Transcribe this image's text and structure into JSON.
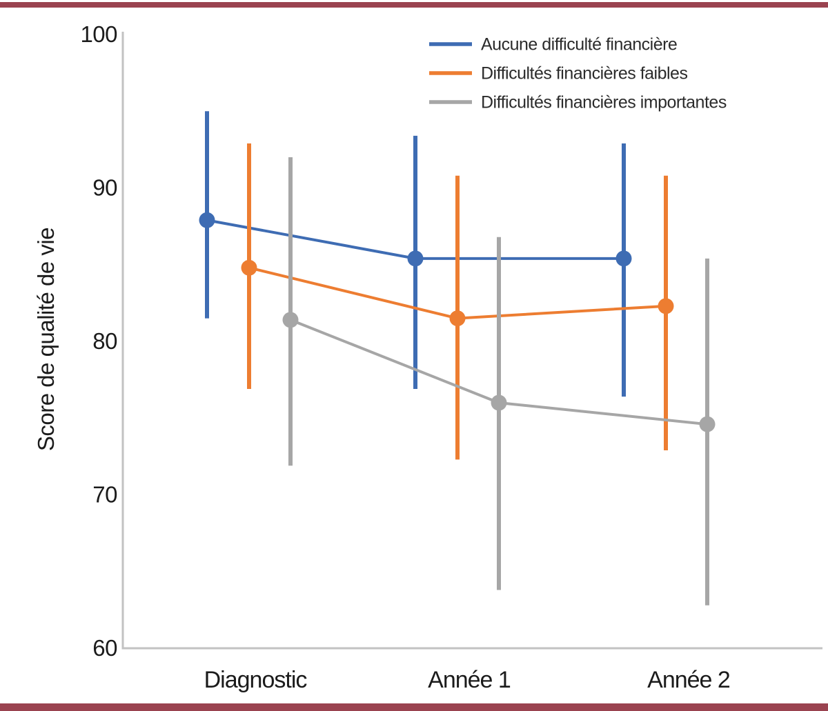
{
  "page": {
    "border_bar_color": "#9A4350"
  },
  "chart_data": {
    "type": "line",
    "title": "",
    "xlabel": "",
    "ylabel": "Score de qualité de vie",
    "categories": [
      "Diagnostic",
      "Année 1",
      "Année 2"
    ],
    "ylim": [
      60,
      100
    ],
    "y_ticks": [
      60,
      70,
      80,
      90,
      100
    ],
    "grid": false,
    "legend_position": "top-right",
    "marker": "circle",
    "error_bars": "vertical bars without caps",
    "series": [
      {
        "name": "Aucune difficulté financière",
        "color": "#3E6CB3",
        "values": [
          87.9,
          85.4,
          85.4
        ],
        "ci_low": [
          81.5,
          76.9,
          76.4
        ],
        "ci_high": [
          95.0,
          93.4,
          92.9
        ]
      },
      {
        "name": "Difficultés financières faibles",
        "color": "#ED7D31",
        "values": [
          84.8,
          81.5,
          82.3
        ],
        "ci_low": [
          76.9,
          72.3,
          72.9
        ],
        "ci_high": [
          92.9,
          90.8,
          90.8
        ]
      },
      {
        "name": "Difficultés financières importantes",
        "color": "#A6A6A6",
        "values": [
          81.4,
          76.0,
          74.6
        ],
        "ci_low": [
          71.9,
          63.8,
          62.8
        ],
        "ci_high": [
          92.0,
          86.8,
          85.4
        ]
      }
    ]
  }
}
